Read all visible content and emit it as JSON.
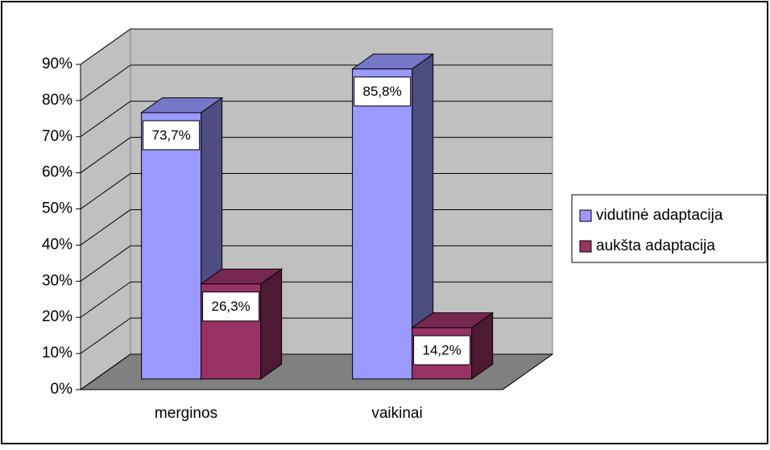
{
  "chart_data": {
    "type": "bar3d",
    "categories": [
      "merginos",
      "vaikinai"
    ],
    "series": [
      {
        "name": "vidutinė adaptacija",
        "color": "#9999FF",
        "values": [
          73.7,
          85.8
        ],
        "value_labels": [
          "73,7%",
          "85,8%"
        ]
      },
      {
        "name": "aukšta adaptacija",
        "color": "#993366",
        "values": [
          26.3,
          14.2
        ],
        "value_labels": [
          "26,3%",
          "14,2%"
        ]
      }
    ],
    "ylim": [
      0,
      90
    ],
    "yticks": [
      {
        "value": 0,
        "label": "0%"
      },
      {
        "value": 10,
        "label": "10%"
      },
      {
        "value": 20,
        "label": "20%"
      },
      {
        "value": 30,
        "label": "30%"
      },
      {
        "value": 40,
        "label": "40%"
      },
      {
        "value": 50,
        "label": "50%"
      },
      {
        "value": 60,
        "label": "60%"
      },
      {
        "value": 70,
        "label": "70%"
      },
      {
        "value": 80,
        "label": "80%"
      },
      {
        "value": 90,
        "label": "90%"
      }
    ],
    "grid": true,
    "legend": "right"
  }
}
